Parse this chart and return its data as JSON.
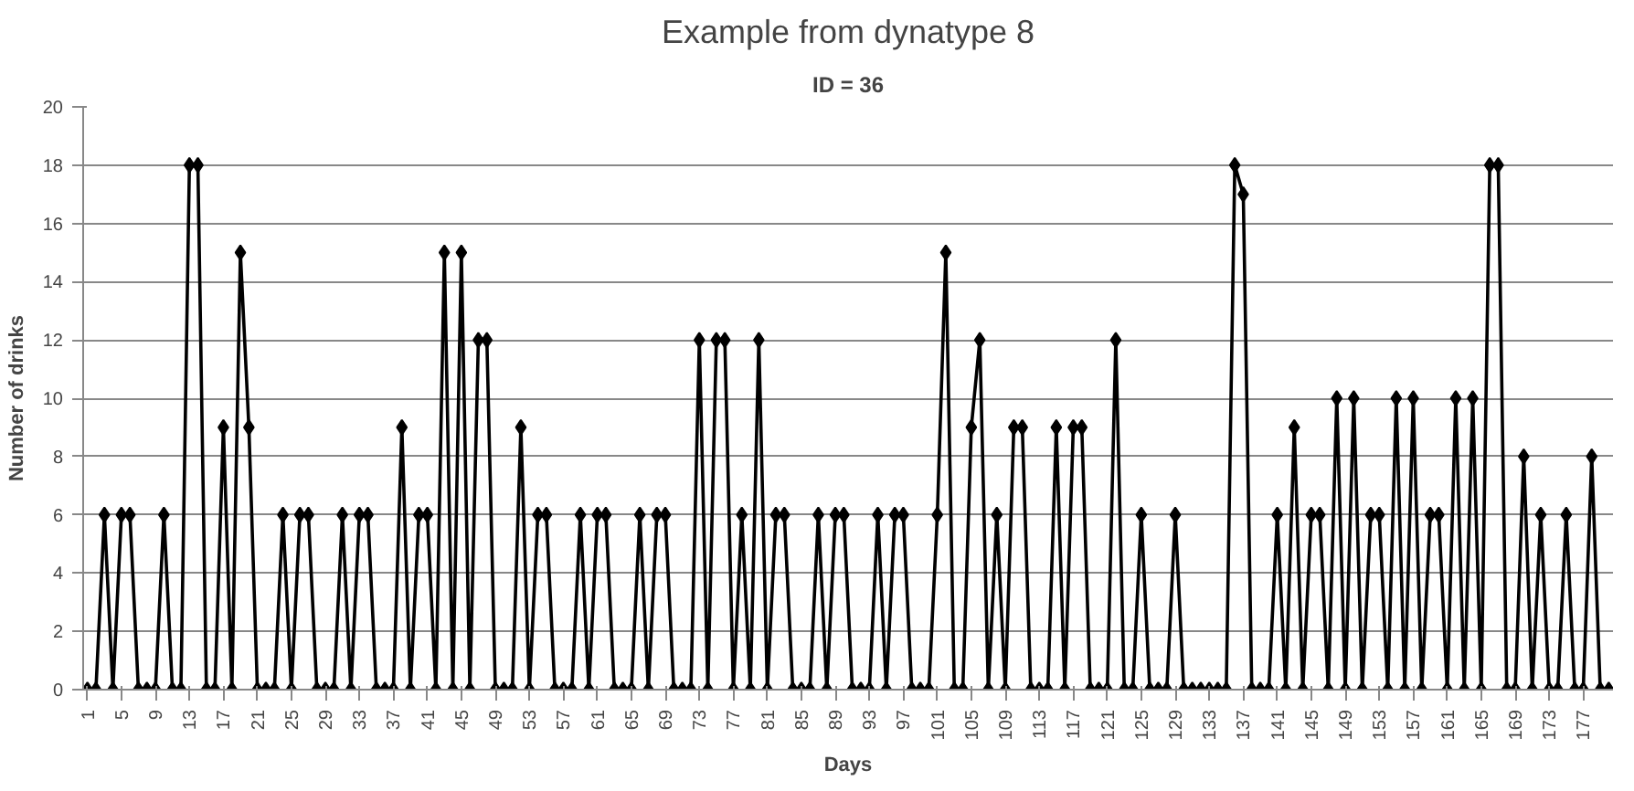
{
  "chart_data": {
    "type": "line",
    "title": "Example from dynatype 8",
    "subtitle": "ID = 36",
    "xlabel": "Days",
    "ylabel": "Number of drinks",
    "x": [
      1,
      2,
      3,
      4,
      5,
      6,
      7,
      8,
      9,
      10,
      11,
      12,
      13,
      14,
      15,
      16,
      17,
      18,
      19,
      20,
      21,
      22,
      23,
      24,
      25,
      26,
      27,
      28,
      29,
      30,
      31,
      32,
      33,
      34,
      35,
      36,
      37,
      38,
      39,
      40,
      41,
      42,
      43,
      44,
      45,
      46,
      47,
      48,
      49,
      50,
      51,
      52,
      53,
      54,
      55,
      56,
      57,
      58,
      59,
      60,
      61,
      62,
      63,
      64,
      65,
      66,
      67,
      68,
      69,
      70,
      71,
      72,
      73,
      74,
      75,
      76,
      77,
      78,
      79,
      80,
      81,
      82,
      83,
      84,
      85,
      86,
      87,
      88,
      89,
      90,
      91,
      92,
      93,
      94,
      95,
      96,
      97,
      98,
      99,
      100,
      101,
      102,
      103,
      104,
      105,
      106,
      107,
      108,
      109,
      110,
      111,
      112,
      113,
      114,
      115,
      116,
      117,
      118,
      119,
      120,
      121,
      122,
      123,
      124,
      125,
      126,
      127,
      128,
      129,
      130,
      131,
      132,
      133,
      134,
      135,
      136,
      137,
      138,
      139,
      140,
      141,
      142,
      143,
      144,
      145,
      146,
      147,
      148,
      149,
      150,
      151,
      152,
      153,
      154,
      155,
      156,
      157,
      158,
      159,
      160,
      161,
      162,
      163,
      164,
      165,
      166,
      167,
      168,
      169,
      170,
      171,
      172,
      173,
      174,
      175,
      176,
      177,
      178,
      179,
      180
    ],
    "series": [
      {
        "color": "#000000",
        "values": [
          0,
          0,
          6,
          0,
          6,
          6,
          0,
          0,
          0,
          6,
          0,
          0,
          18,
          18,
          0,
          0,
          9,
          0,
          15,
          9,
          0,
          0,
          0,
          6,
          0,
          6,
          6,
          0,
          0,
          0,
          6,
          0,
          6,
          6,
          0,
          0,
          0,
          9,
          0,
          6,
          6,
          0,
          15,
          0,
          15,
          0,
          12,
          12,
          0,
          0,
          0,
          9,
          0,
          6,
          6,
          0,
          0,
          0,
          6,
          0,
          6,
          6,
          0,
          0,
          0,
          6,
          0,
          6,
          6,
          0,
          0,
          0,
          12,
          0,
          12,
          12,
          0,
          6,
          0,
          12,
          0,
          6,
          6,
          0,
          0,
          0,
          6,
          0,
          6,
          6,
          0,
          0,
          0,
          6,
          0,
          6,
          6,
          0,
          0,
          0,
          6,
          15,
          0,
          0,
          9,
          12,
          0,
          6,
          0,
          9,
          9,
          0,
          0,
          0,
          9,
          0,
          9,
          9,
          0,
          0,
          0,
          12,
          0,
          0,
          6,
          0,
          0,
          0,
          6,
          0,
          0,
          0,
          0,
          0,
          0,
          18,
          17,
          0,
          0,
          0,
          6,
          0,
          9,
          0,
          6,
          6,
          0,
          10,
          0,
          10,
          0,
          6,
          6,
          0,
          10,
          0,
          10,
          0,
          6,
          6,
          0,
          10,
          0,
          10,
          0,
          18,
          18,
          0,
          0,
          8,
          0,
          6,
          0,
          0,
          6,
          0,
          0,
          8,
          0,
          0
        ]
      }
    ],
    "xlim": [
      0.5,
      180.5
    ],
    "xticks": [
      1,
      5,
      9,
      13,
      17,
      21,
      25,
      29,
      33,
      37,
      41,
      45,
      49,
      53,
      57,
      61,
      65,
      69,
      73,
      77,
      81,
      85,
      89,
      93,
      97,
      101,
      105,
      109,
      113,
      117,
      121,
      125,
      129,
      133,
      137,
      141,
      145,
      149,
      153,
      157,
      161,
      165,
      169,
      173,
      177
    ],
    "ylim": [
      0,
      20
    ],
    "yticks": [
      0,
      2,
      4,
      6,
      8,
      10,
      12,
      14,
      16,
      18,
      20
    ],
    "grid": "y",
    "marker": "diamond",
    "line_style": "solid"
  }
}
